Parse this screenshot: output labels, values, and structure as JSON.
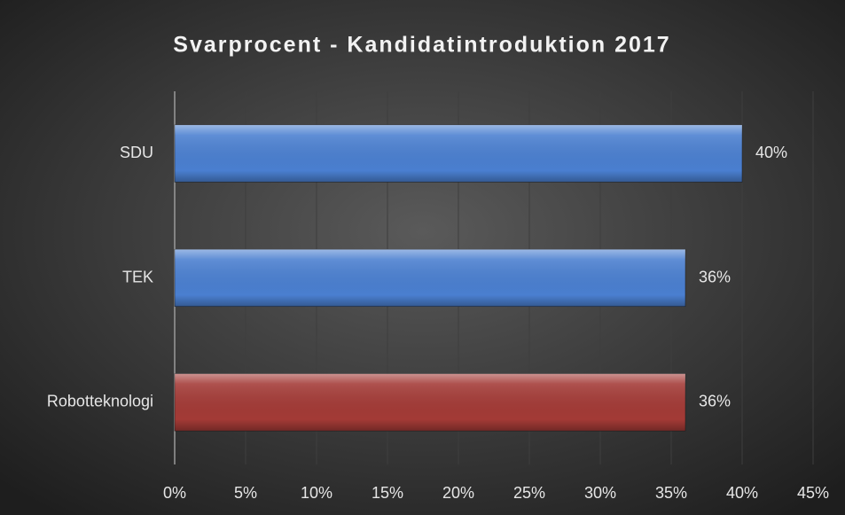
{
  "chart_data": {
    "type": "barh",
    "title": "Svarprocent - Kandidatintroduktion 2017",
    "categories": [
      "SDU",
      "TEK",
      "Robotteknologi"
    ],
    "values": [
      40,
      36,
      36
    ],
    "value_labels": [
      "40%",
      "36%",
      "36%"
    ],
    "colors": [
      "#4a7fd0",
      "#4a7fd0",
      "#a33a36"
    ],
    "xlim": [
      0,
      45
    ],
    "xticks": [
      {
        "value": 0,
        "label": "0%"
      },
      {
        "value": 5,
        "label": "5%"
      },
      {
        "value": 10,
        "label": "10%"
      },
      {
        "value": 15,
        "label": "15%"
      },
      {
        "value": 20,
        "label": "20%"
      },
      {
        "value": 25,
        "label": "25%"
      },
      {
        "value": 30,
        "label": "30%"
      },
      {
        "value": 35,
        "label": "35%"
      },
      {
        "value": 40,
        "label": "40%"
      },
      {
        "value": 45,
        "label": "45%"
      }
    ],
    "grid": true
  }
}
